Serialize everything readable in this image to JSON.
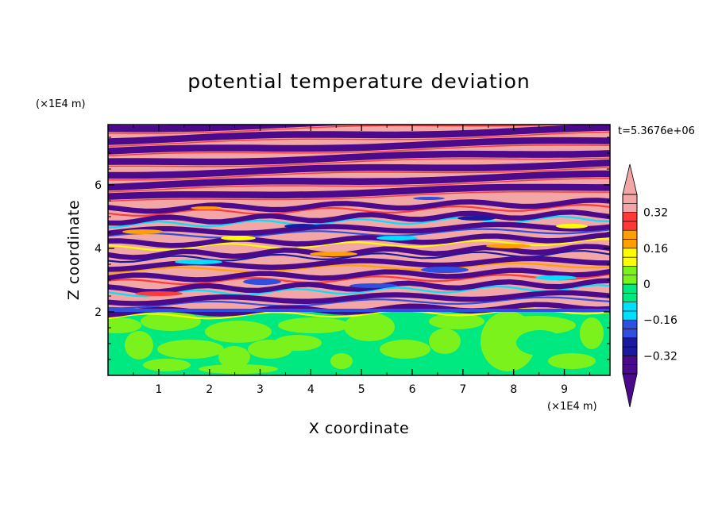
{
  "chart_data": {
    "type": "heatmap",
    "title": "potential temperature deviation",
    "xlabel": "X coordinate",
    "ylabel": "Z coordinate",
    "x_unit": "(×1E4 m)",
    "y_unit": "(×1E4 m)",
    "time_label": "t=5.3676e+06",
    "xlim": [
      0,
      9.9
    ],
    "ylim": [
      0,
      7.9
    ],
    "x_ticks": [
      1,
      2,
      3,
      4,
      5,
      6,
      7,
      8,
      9
    ],
    "x_tick_labels": [
      "1",
      "2",
      "3",
      "4",
      "5",
      "6",
      "7",
      "8",
      "9"
    ],
    "y_ticks": [
      2,
      4,
      6
    ],
    "y_tick_labels": [
      "2",
      "4",
      "6"
    ],
    "colorbar": {
      "levels": [
        -0.4,
        -0.36,
        -0.32,
        -0.28,
        -0.24,
        -0.2,
        -0.16,
        -0.12,
        -0.08,
        -0.04,
        0,
        0.04,
        0.08,
        0.12,
        0.16,
        0.2,
        0.24,
        0.28,
        0.32,
        0.36,
        0.4
      ],
      "colors": [
        "#4b0a8c",
        "#1a1aa0",
        "#2f4fe0",
        "#00e0ff",
        "#00e880",
        "#7cf21c",
        "#ffff00",
        "#ffa000",
        "#ff3838",
        "#f2a6a6"
      ],
      "labels": [
        {
          "value": 0.32,
          "text": "0.32"
        },
        {
          "value": 0.16,
          "text": "0.16"
        },
        {
          "value": 0,
          "text": "0"
        },
        {
          "value": -0.16,
          "text": "−0.16"
        },
        {
          "value": -0.32,
          "text": "−0.32"
        }
      ],
      "extend": "both"
    },
    "field_summary": {
      "lower_layer": {
        "z_range": [
          0,
          2
        ],
        "colors": [
          "#00e880",
          "#7cf21c"
        ]
      },
      "upper_layer": {
        "z_range": [
          2,
          7.9
        ],
        "pattern": "tilted alternating bands",
        "band_colors": [
          "#f2a6a6",
          "#4b0a8c"
        ],
        "transition_colors": [
          "#ffa000",
          "#ff3838",
          "#00e0ff",
          "#2f4fe0",
          "#ffff00",
          "#1a1aa0"
        ]
      }
    }
  }
}
